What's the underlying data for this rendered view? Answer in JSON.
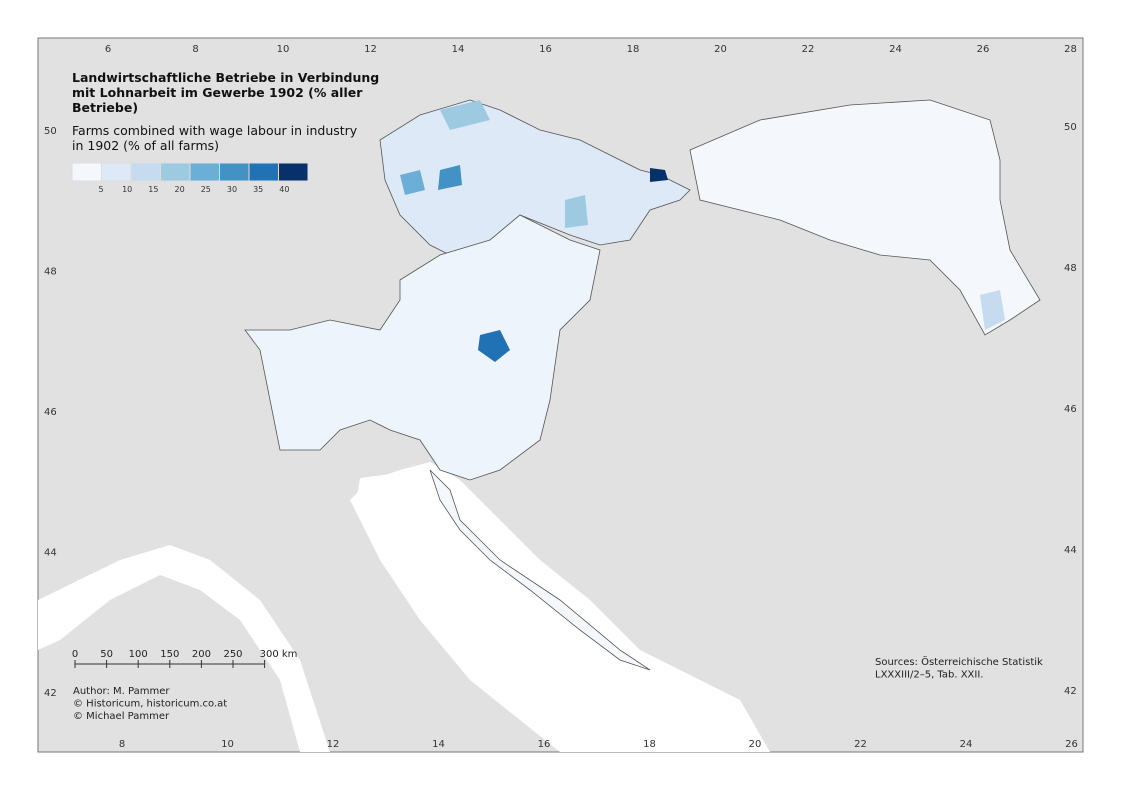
{
  "map": {
    "title": [
      "Landwirtschaftliche Betriebe in Verbindung",
      "mit Lohnarbeit im Gewerbe 1902 (% aller",
      "Betriebe)"
    ],
    "subtitle": [
      "Farms combined with wage labour in industry",
      "in 1902 (% of all farms)"
    ],
    "legend": {
      "labels": [
        5,
        10,
        15,
        20,
        25,
        30,
        35,
        40
      ],
      "colors": [
        "#f4f8fd",
        "#dde9f6",
        "#c6dbef",
        "#9ecae1",
        "#6baed6",
        "#4292c6",
        "#2171b5",
        "#08306b"
      ]
    },
    "scale_bar": [
      "0",
      "50",
      "100",
      "150",
      "200",
      "250",
      "300 km"
    ],
    "credits": [
      "Author: M. Pammer",
      "© Historicum, historicum.co.at",
      "© Michael Pammer"
    ],
    "sources": [
      "Sources: Österreichische Statistik",
      "LXXXIII/2–5, Tab. XXII."
    ],
    "graticule": {
      "top": [
        6,
        8,
        10,
        12,
        14,
        16,
        18,
        20,
        22,
        24,
        26,
        28
      ],
      "bottom": [
        8,
        10,
        12,
        14,
        16,
        18,
        20,
        22,
        24,
        26
      ],
      "left": [
        50,
        48,
        46,
        44,
        42
      ],
      "right": [
        50,
        48,
        46,
        44,
        42
      ]
    }
  }
}
